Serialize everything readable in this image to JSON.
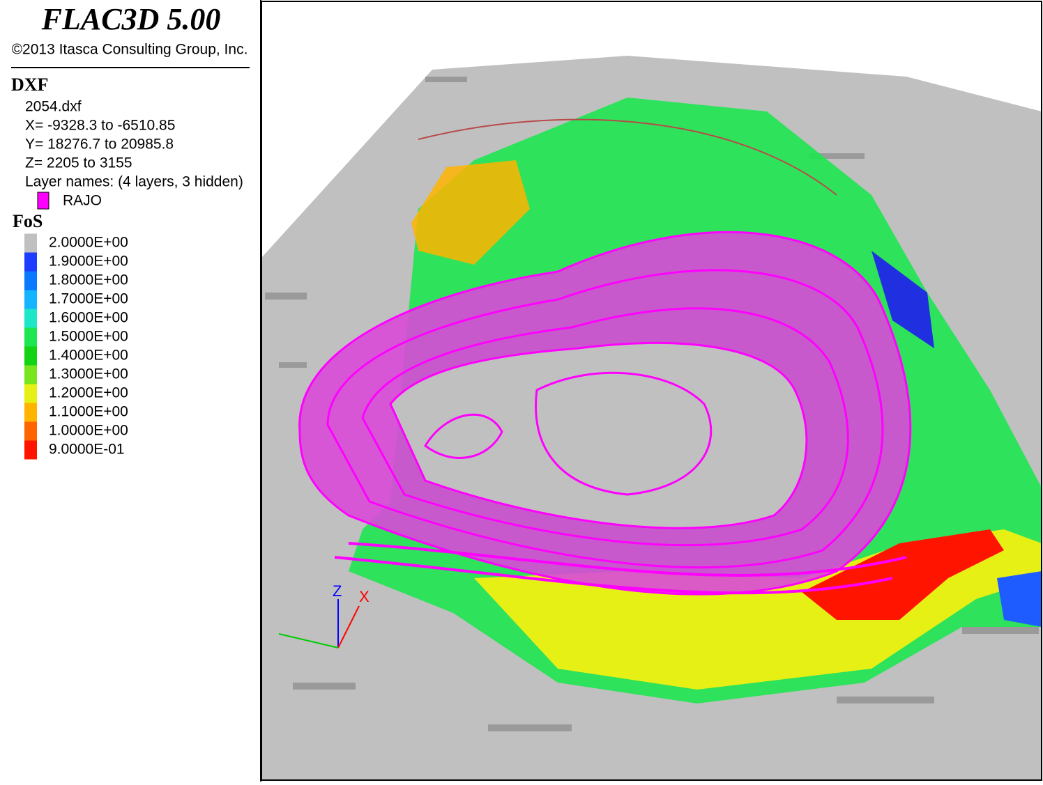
{
  "header": {
    "title": "FLAC3D 5.00",
    "copyright": "©2013 Itasca Consulting Group, Inc."
  },
  "dxf": {
    "title": "DXF",
    "file": "2054.dxf",
    "x_range": "X= -9328.3 to -6510.85",
    "y_range": "Y= 18276.7 to 20985.8",
    "z_range": "Z= 2205 to 3155",
    "layers": "Layer names: (4 layers, 3 hidden)",
    "layer": {
      "name": "RAJO",
      "color": "#ff00ff"
    }
  },
  "fos": {
    "title": "FoS",
    "entries": [
      {
        "label": "2.0000E+00",
        "color": "#c0c0c0"
      },
      {
        "label": "1.9000E+00",
        "color": "#1e3cff"
      },
      {
        "label": "1.8000E+00",
        "color": "#0a78ff"
      },
      {
        "label": "1.7000E+00",
        "color": "#14b4ff"
      },
      {
        "label": "1.6000E+00",
        "color": "#1ee6c8"
      },
      {
        "label": "1.5000E+00",
        "color": "#1ee650"
      },
      {
        "label": "1.4000E+00",
        "color": "#14d214"
      },
      {
        "label": "1.3000E+00",
        "color": "#78e61e"
      },
      {
        "label": "1.2000E+00",
        "color": "#e6f014"
      },
      {
        "label": "1.1000E+00",
        "color": "#ffb400"
      },
      {
        "label": "1.0000E+00",
        "color": "#ff6400"
      },
      {
        "label": "9.0000E-01",
        "color": "#ff1400"
      }
    ]
  },
  "axes": {
    "z": "Z",
    "x": "X"
  }
}
